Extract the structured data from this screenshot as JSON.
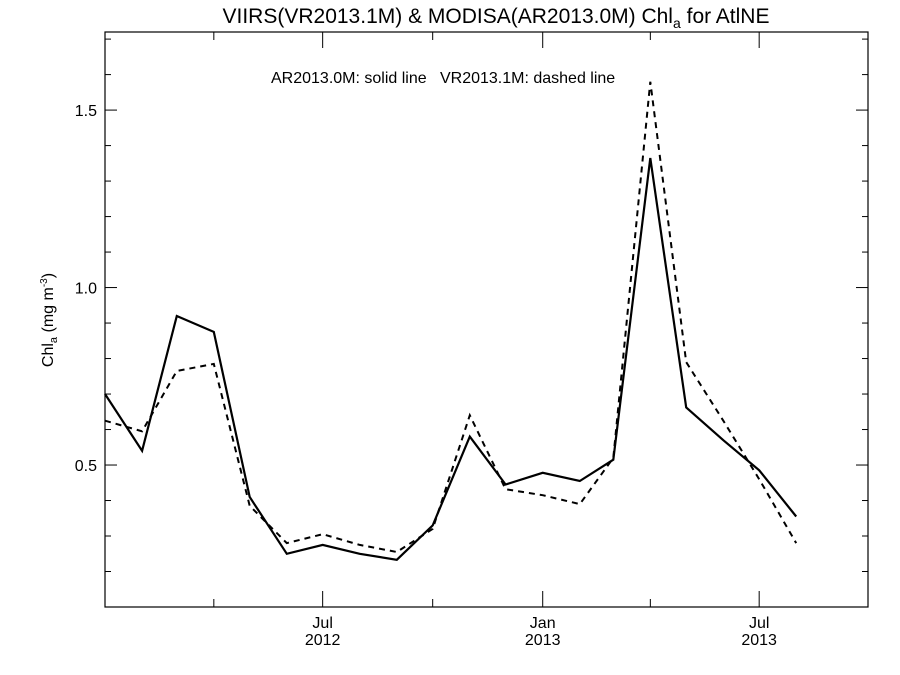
{
  "chart_data": {
    "type": "line",
    "title": {
      "main": "VIIRS(VR2013.1M) & MODISA(AR2013.0M)  Chl",
      "subscript": "a",
      "suffix": " for AtlNE"
    },
    "annotation": "AR2013.0M: solid line   VR2013.1M: dashed line",
    "ylabel": {
      "main": "Chl",
      "subscript": "a",
      "units": " (mg m",
      "superscript": "-3",
      "close": ")"
    },
    "xlim": [
      "2012-01-01",
      "2013-09-30"
    ],
    "ylim": [
      0.1,
      1.72
    ],
    "yticks": [
      {
        "value": 0.5,
        "label": "0.5"
      },
      {
        "value": 1.0,
        "label": "1.0"
      },
      {
        "value": 1.5,
        "label": "1.5"
      }
    ],
    "xticks": [
      {
        "date": "2012-07-01",
        "label": "Jul",
        "year": "2012"
      },
      {
        "date": "2013-01-01",
        "label": "Jan",
        "year": "2013"
      },
      {
        "date": "2013-07-01",
        "label": "Jul",
        "year": "2013"
      }
    ],
    "series": [
      {
        "name": "AR2013.0M",
        "style": "solid",
        "points": [
          {
            "x": "2012-01-01",
            "y": 0.7
          },
          {
            "x": "2012-02-01",
            "y": 0.54
          },
          {
            "x": "2012-03-01",
            "y": 0.92
          },
          {
            "x": "2012-04-01",
            "y": 0.875
          },
          {
            "x": "2012-05-01",
            "y": 0.41
          },
          {
            "x": "2012-06-01",
            "y": 0.25
          },
          {
            "x": "2012-07-01",
            "y": 0.275
          },
          {
            "x": "2012-08-01",
            "y": 0.25
          },
          {
            "x": "2012-09-01",
            "y": 0.233
          },
          {
            "x": "2012-10-01",
            "y": 0.33
          },
          {
            "x": "2012-11-01",
            "y": 0.58
          },
          {
            "x": "2012-12-01",
            "y": 0.445
          },
          {
            "x": "2013-01-01",
            "y": 0.478
          },
          {
            "x": "2013-02-01",
            "y": 0.455
          },
          {
            "x": "2013-03-01",
            "y": 0.515
          },
          {
            "x": "2013-04-01",
            "y": 1.365
          },
          {
            "x": "2013-05-01",
            "y": 0.662
          },
          {
            "x": "2013-06-01",
            "y": 0.57
          },
          {
            "x": "2013-07-01",
            "y": 0.485
          },
          {
            "x": "2013-08-01",
            "y": 0.355
          }
        ]
      },
      {
        "name": "VR2013.1M",
        "style": "dashed",
        "points": [
          {
            "x": "2012-01-01",
            "y": 0.625
          },
          {
            "x": "2012-02-01",
            "y": 0.595
          },
          {
            "x": "2012-03-01",
            "y": 0.765
          },
          {
            "x": "2012-04-01",
            "y": 0.785
          },
          {
            "x": "2012-05-01",
            "y": 0.385
          },
          {
            "x": "2012-06-01",
            "y": 0.28
          },
          {
            "x": "2012-07-01",
            "y": 0.305
          },
          {
            "x": "2012-08-01",
            "y": 0.275
          },
          {
            "x": "2012-09-01",
            "y": 0.255
          },
          {
            "x": "2012-10-01",
            "y": 0.32
          },
          {
            "x": "2012-11-01",
            "y": 0.64
          },
          {
            "x": "2012-12-01",
            "y": 0.432
          },
          {
            "x": "2013-01-01",
            "y": 0.415
          },
          {
            "x": "2013-02-01",
            "y": 0.39
          },
          {
            "x": "2013-03-01",
            "y": 0.52
          },
          {
            "x": "2013-04-01",
            "y": 1.58
          },
          {
            "x": "2013-05-01",
            "y": 0.79
          },
          {
            "x": "2013-06-01",
            "y": 0.625
          },
          {
            "x": "2013-07-01",
            "y": 0.46
          },
          {
            "x": "2013-08-01",
            "y": 0.28
          }
        ]
      }
    ],
    "grid": false,
    "legend": "none"
  }
}
